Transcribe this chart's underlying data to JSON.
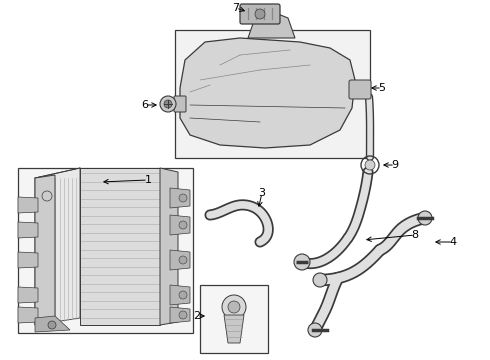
{
  "bg_color": "#ffffff",
  "lc": "#3a3a3a",
  "fig_width": 4.9,
  "fig_height": 3.6,
  "dpi": 100
}
